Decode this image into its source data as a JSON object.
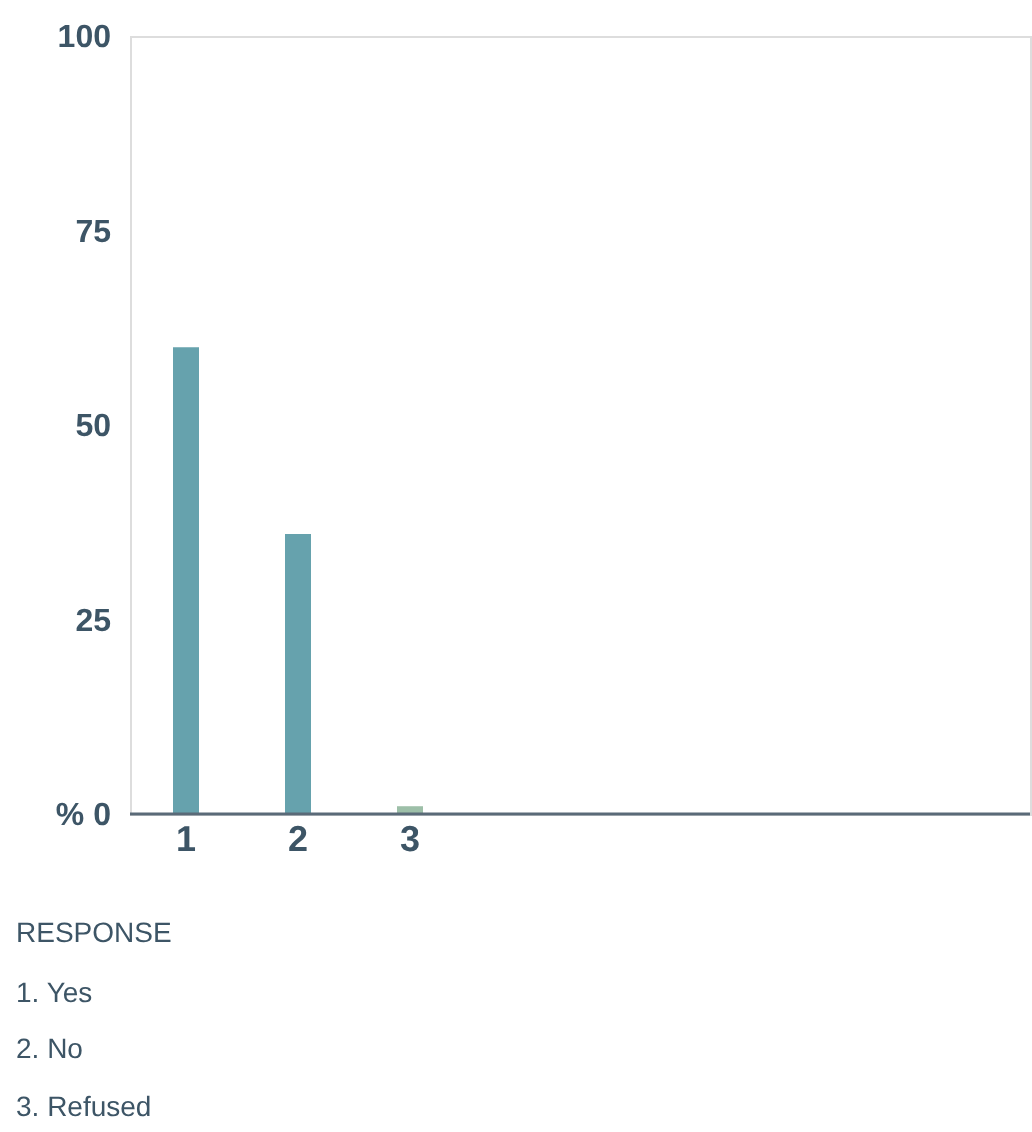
{
  "chart_data": {
    "type": "bar",
    "categories": [
      "1",
      "2",
      "3"
    ],
    "values": [
      60,
      36,
      1
    ],
    "colors": [
      "#66a2ad",
      "#66a2ad",
      "#9dbfa8"
    ],
    "ylim": [
      0,
      100
    ],
    "yticks": [
      {
        "value": 0,
        "label": "% 0"
      },
      25,
      50,
      75,
      100
    ],
    "grid": false,
    "annotations": [
      "RESPONSE",
      "1.  Yes",
      "2.  No",
      "3.  Refused"
    ]
  }
}
